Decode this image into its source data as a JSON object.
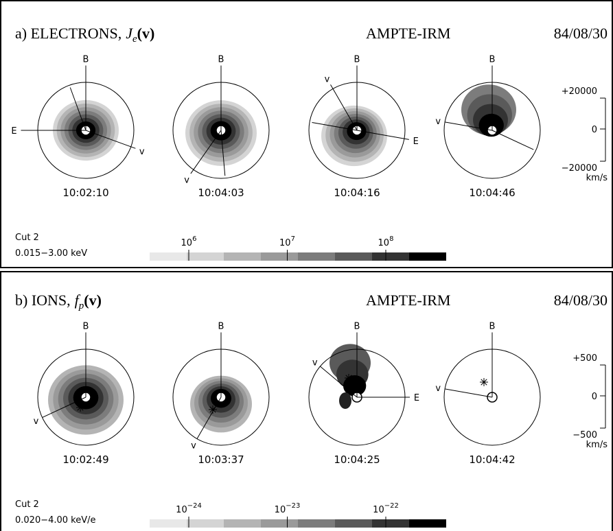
{
  "panels": [
    {
      "label": "a) ELECTRONS,",
      "symbol": "J",
      "subscript": "e",
      "argument": "(v)",
      "mission": "AMPTE-IRM",
      "date": "84/08/30",
      "plots": [
        {
          "time": "10:02:10",
          "labels": [
            "B",
            "E",
            "v"
          ]
        },
        {
          "time": "10:04:03",
          "labels": [
            "B",
            "v"
          ]
        },
        {
          "time": "10:04:16",
          "labels": [
            "v",
            "B",
            "E"
          ]
        },
        {
          "time": "10:04:46",
          "labels": [
            "B",
            "v"
          ]
        }
      ],
      "scale": {
        "top": "+20000",
        "middle": "0",
        "bottom": "−20000",
        "unit": "km/s"
      },
      "cut": "Cut 2",
      "energy": "0.015−3.00 keV",
      "colorbar": [
        {
          "base": "10",
          "exponent": "6"
        },
        {
          "base": "10",
          "exponent": "7"
        },
        {
          "base": "10",
          "exponent": "8"
        }
      ]
    },
    {
      "label": "b) IONS,",
      "symbol": "f",
      "subscript": "p",
      "argument": "(v)",
      "mission": "AMPTE-IRM",
      "date": "84/08/30",
      "plots": [
        {
          "time": "10:02:49",
          "labels": [
            "B",
            "v"
          ]
        },
        {
          "time": "10:03:37",
          "labels": [
            "B",
            "v"
          ]
        },
        {
          "time": "10:04:25",
          "labels": [
            "v",
            "B",
            "E"
          ]
        },
        {
          "time": "10:04:42",
          "labels": [
            "B",
            "v"
          ]
        }
      ],
      "scale": {
        "top": "+500",
        "middle": "0",
        "bottom": "−500",
        "unit": "km/s"
      },
      "cut": "Cut 2",
      "energy": "0.020−4.00 keV/e",
      "colorbar": [
        {
          "base": "10",
          "exponent": "−24"
        },
        {
          "base": "10",
          "exponent": "−23"
        },
        {
          "base": "10",
          "exponent": "−22"
        }
      ]
    }
  ]
}
